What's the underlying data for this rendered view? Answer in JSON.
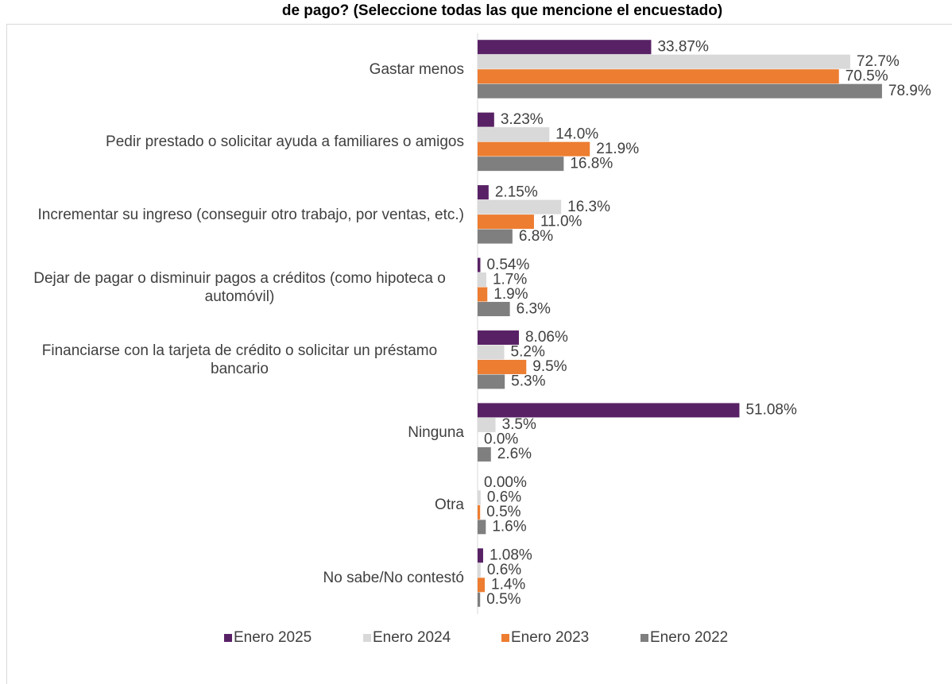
{
  "chart_data": {
    "type": "bar",
    "orientation": "horizontal",
    "title": "de pago? (Seleccione todas las que mencione el encuestado)",
    "categories": [
      "Gastar menos",
      "Pedir prestado o solicitar ayuda a familiares o amigos",
      "Incrementar su ingreso (conseguir otro trabajo, por ventas, etc.)",
      "Dejar de pagar o disminuir pagos a créditos (como hipoteca o automóvil)",
      "Financiarse con la tarjeta de crédito o solicitar un préstamo bancario",
      "Ninguna",
      "Otra",
      "No sabe/No contestó"
    ],
    "series": [
      {
        "name": "Enero 2025",
        "color": "#582165",
        "values": [
          33.87,
          3.23,
          2.15,
          0.54,
          8.06,
          51.08,
          0.0,
          1.08
        ],
        "value_labels": [
          "33.87%",
          "3.23%",
          "2.15%",
          "0.54%",
          "8.06%",
          "51.08%",
          "0.00%",
          "1.08%"
        ]
      },
      {
        "name": "Enero 2024",
        "color": "#d9d9d9",
        "values": [
          72.7,
          14.0,
          16.3,
          1.7,
          5.2,
          3.5,
          0.6,
          0.6
        ],
        "value_labels": [
          "72.7%",
          "14.0%",
          "16.3%",
          "1.7%",
          "5.2%",
          "3.5%",
          "0.6%",
          "0.6%"
        ]
      },
      {
        "name": "Enero 2023",
        "color": "#ed7d31",
        "values": [
          70.5,
          21.9,
          11.0,
          1.9,
          9.5,
          0.0,
          0.5,
          1.4
        ],
        "value_labels": [
          "70.5%",
          "21.9%",
          "11.0%",
          "1.9%",
          "9.5%",
          "0.0%",
          "0.5%",
          "1.4%"
        ]
      },
      {
        "name": "Enero 2022",
        "color": "#7f7f7f",
        "values": [
          78.9,
          16.8,
          6.8,
          6.3,
          5.3,
          2.6,
          1.6,
          0.5
        ],
        "value_labels": [
          "78.9%",
          "16.8%",
          "6.8%",
          "6.3%",
          "5.3%",
          "2.6%",
          "1.6%",
          "0.5%"
        ]
      }
    ],
    "xlim": [
      0,
      80
    ],
    "legend": "bottom"
  }
}
